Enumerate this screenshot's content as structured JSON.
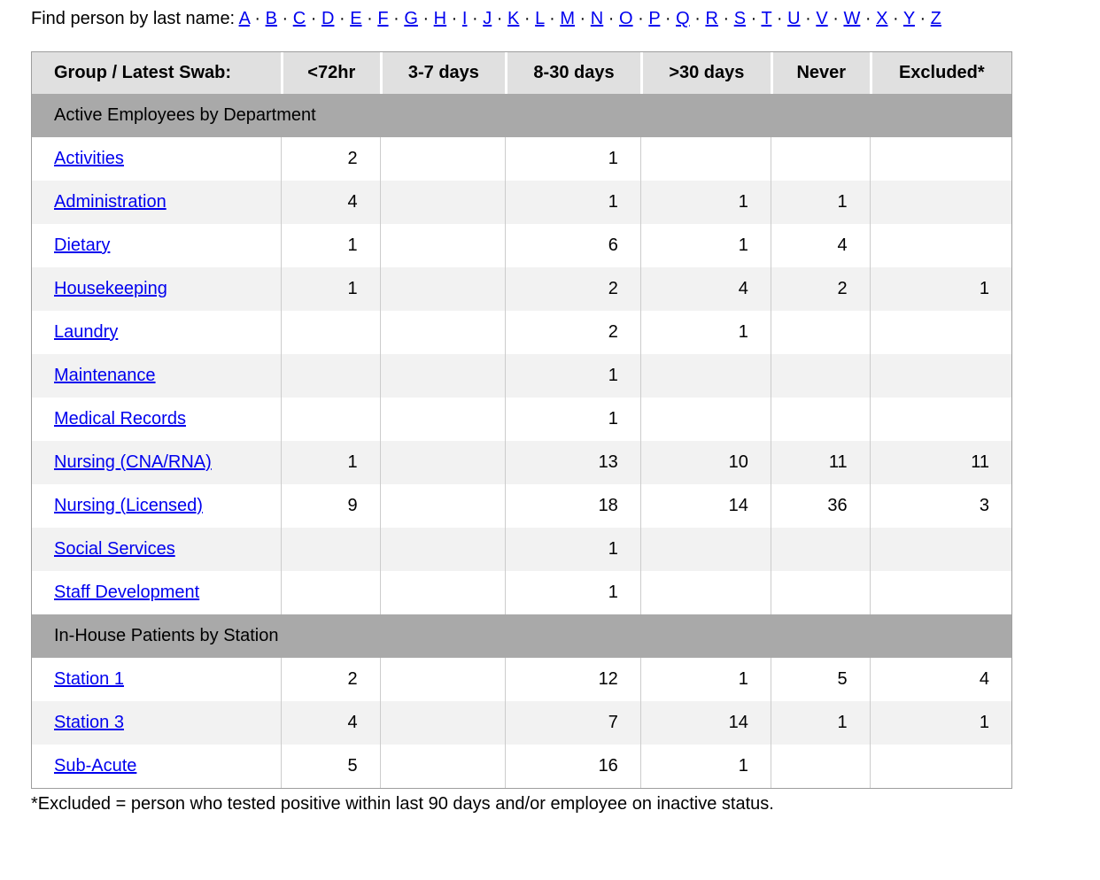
{
  "find_bar": {
    "label": "Find person by last name: ",
    "separator": "·",
    "letters": [
      "A",
      "B",
      "C",
      "D",
      "E",
      "F",
      "G",
      "H",
      "I",
      "J",
      "K",
      "L",
      "M",
      "N",
      "O",
      "P",
      "Q",
      "R",
      "S",
      "T",
      "U",
      "V",
      "W",
      "X",
      "Y",
      "Z"
    ]
  },
  "table": {
    "headers": [
      "Group / Latest Swab:",
      "<72hr",
      "3-7 days",
      "8-30 days",
      ">30 days",
      "Never",
      "Excluded*"
    ],
    "sections": [
      {
        "title": "Active Employees by Department",
        "rows": [
          {
            "label": "Activities",
            "values": [
              2,
              "",
              1,
              "",
              "",
              ""
            ]
          },
          {
            "label": "Administration",
            "values": [
              4,
              "",
              1,
              1,
              1,
              ""
            ]
          },
          {
            "label": "Dietary",
            "values": [
              1,
              "",
              6,
              1,
              4,
              ""
            ]
          },
          {
            "label": "Housekeeping",
            "values": [
              1,
              "",
              2,
              4,
              2,
              1
            ]
          },
          {
            "label": "Laundry",
            "values": [
              "",
              "",
              2,
              1,
              "",
              ""
            ]
          },
          {
            "label": "Maintenance",
            "values": [
              "",
              "",
              1,
              "",
              "",
              ""
            ]
          },
          {
            "label": "Medical Records",
            "values": [
              "",
              "",
              1,
              "",
              "",
              ""
            ]
          },
          {
            "label": "Nursing (CNA/RNA)",
            "values": [
              1,
              "",
              13,
              10,
              11,
              11
            ]
          },
          {
            "label": "Nursing (Licensed)",
            "values": [
              9,
              "",
              18,
              14,
              36,
              3
            ]
          },
          {
            "label": "Social Services",
            "values": [
              "",
              "",
              1,
              "",
              "",
              ""
            ]
          },
          {
            "label": "Staff Development",
            "values": [
              "",
              "",
              1,
              "",
              "",
              ""
            ]
          }
        ]
      },
      {
        "title": "In-House Patients by Station",
        "rows": [
          {
            "label": "Station 1",
            "values": [
              2,
              "",
              12,
              1,
              5,
              4
            ]
          },
          {
            "label": "Station 3",
            "values": [
              4,
              "",
              7,
              14,
              1,
              1
            ]
          },
          {
            "label": "Sub-Acute",
            "values": [
              5,
              "",
              16,
              1,
              "",
              ""
            ]
          }
        ]
      }
    ]
  },
  "footnote": "*Excluded = person who tested positive within last 90 days and/or employee on inactive status.",
  "colors": {
    "link_blue": "#0000EE",
    "header_bg": "#E0E0E0",
    "section_bg": "#A9A9A9",
    "alt_row_bg": "#F2F2F2",
    "cell_border": "#CCCCCC",
    "table_border": "#9E9E9E"
  }
}
